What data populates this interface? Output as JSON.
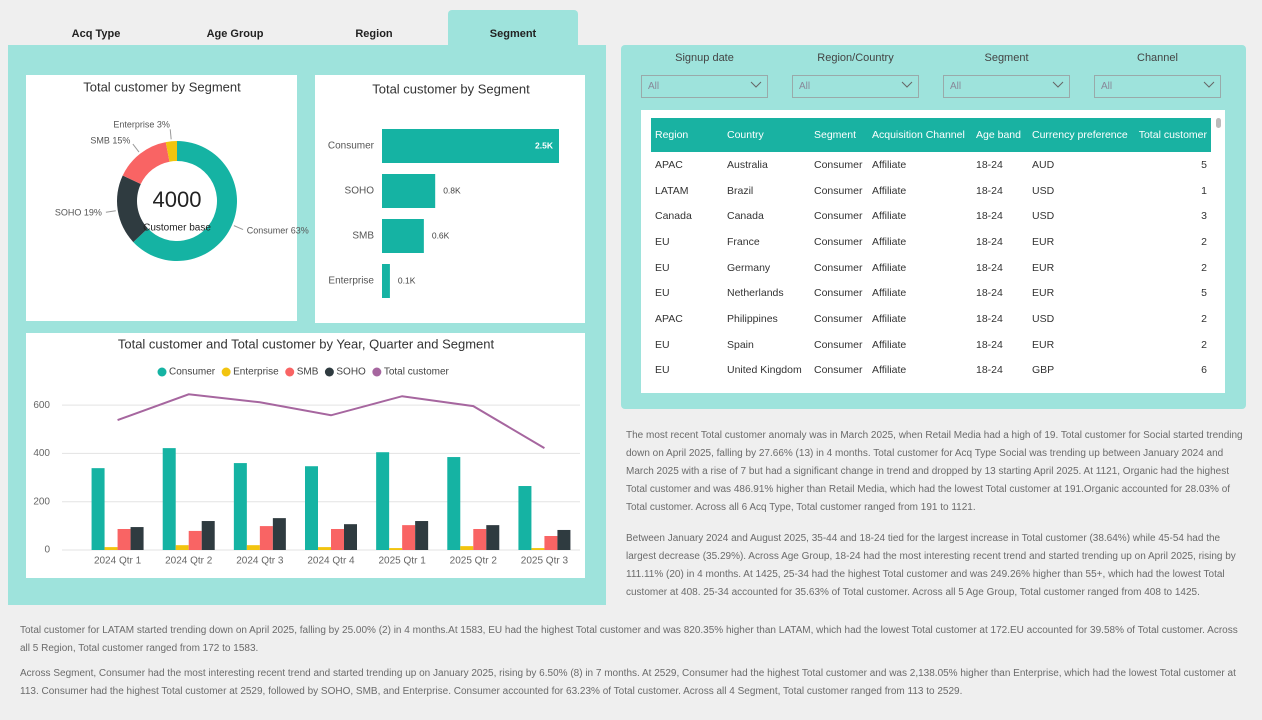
{
  "tabs": {
    "items": [
      "Acq Type",
      "Age Group",
      "Region",
      "Segment"
    ],
    "active": 3
  },
  "chart_data": [
    {
      "type": "donut",
      "title": "Total customer by Segment",
      "center_value": 4000,
      "center_label": "Customer base",
      "categories": [
        "Consumer",
        "SOHO",
        "SMB",
        "Enterprise"
      ],
      "values": [
        63,
        19,
        15,
        3
      ],
      "value_labels": [
        "Consumer 63%",
        "SOHO 19%",
        "SMB 15%",
        "Enterprise 3%"
      ],
      "colors": [
        "#15b3a3",
        "#2f3b40",
        "#f96464",
        "#f2c40f"
      ]
    },
    {
      "type": "hbar",
      "title": "Total customer by Segment",
      "categories": [
        "Consumer",
        "SOHO",
        "SMB",
        "Enterprise"
      ],
      "values": [
        2529,
        760,
        598,
        113
      ],
      "value_labels": [
        "2.5K",
        "0.8K",
        "0.6K",
        "0.1K"
      ],
      "color": "#15b3a3"
    },
    {
      "type": "combo",
      "title": "Total customer and Total customer by Year, Quarter and Segment",
      "categories": [
        "2024 Qtr 1",
        "2024 Qtr 2",
        "2024 Qtr 3",
        "2024 Qtr 4",
        "2025 Qtr 1",
        "2025 Qtr 2",
        "2025 Qtr 3"
      ],
      "series": [
        {
          "name": "Consumer",
          "type": "bar",
          "color": "#15b3a3",
          "values": [
            339,
            422,
            360,
            347,
            405,
            385,
            265
          ]
        },
        {
          "name": "Enterprise",
          "type": "bar",
          "color": "#f2c40f",
          "values": [
            12,
            20,
            20,
            12,
            8,
            16,
            8
          ]
        },
        {
          "name": "SMB",
          "type": "bar",
          "color": "#f96464",
          "values": [
            87,
            79,
            99,
            87,
            103,
            87,
            58
          ]
        },
        {
          "name": "SOHO",
          "type": "bar",
          "color": "#2f3b40",
          "values": [
            95,
            120,
            132,
            107,
            120,
            103,
            83
          ]
        },
        {
          "name": "Total customer",
          "type": "line",
          "color": "#a6669f",
          "values": [
            538,
            645,
            612,
            558,
            637,
            596,
            422
          ]
        }
      ],
      "ylim": [
        0,
        700
      ],
      "yticks": [
        0,
        200,
        400,
        600
      ],
      "grid": true
    }
  ],
  "filters": [
    {
      "label": "Signup date",
      "value": "All"
    },
    {
      "label": "Region/Country",
      "value": "All"
    },
    {
      "label": "Segment",
      "value": "All"
    },
    {
      "label": "Channel",
      "value": "All"
    }
  ],
  "table": {
    "columns": [
      "Region",
      "Country",
      "Segment",
      "Acquisition Channel",
      "Age band",
      "Currency preference",
      "Total customer"
    ],
    "rows": [
      [
        "APAC",
        "Australia",
        "Consumer",
        "Affiliate",
        "18-24",
        "AUD",
        5
      ],
      [
        "LATAM",
        "Brazil",
        "Consumer",
        "Affiliate",
        "18-24",
        "USD",
        1
      ],
      [
        "Canada",
        "Canada",
        "Consumer",
        "Affiliate",
        "18-24",
        "USD",
        3
      ],
      [
        "EU",
        "France",
        "Consumer",
        "Affiliate",
        "18-24",
        "EUR",
        2
      ],
      [
        "EU",
        "Germany",
        "Consumer",
        "Affiliate",
        "18-24",
        "EUR",
        2
      ],
      [
        "EU",
        "Netherlands",
        "Consumer",
        "Affiliate",
        "18-24",
        "EUR",
        5
      ],
      [
        "APAC",
        "Philippines",
        "Consumer",
        "Affiliate",
        "18-24",
        "USD",
        2
      ],
      [
        "EU",
        "Spain",
        "Consumer",
        "Affiliate",
        "18-24",
        "EUR",
        2
      ],
      [
        "EU",
        "United Kingdom",
        "Consumer",
        "Affiliate",
        "18-24",
        "GBP",
        6
      ]
    ]
  },
  "insights": [
    "The most recent Total customer anomaly was in March 2025, when Retail Media had a high of 19. Total customer for Social started trending down on April 2025, falling by 27.66% (13) in 4 months. Total customer for Acq Type Social was trending up between January 2024 and March 2025 with a rise of 7 but had a significant change in trend and dropped by 13 starting April 2025. At 1121, Organic had the highest Total customer and was 486.91% higher than Retail Media, which had the lowest Total customer at 191.Organic accounted for 28.03% of Total customer. Across all 6 Acq Type, Total customer ranged from 191 to 1121.",
    "Between January 2024 and August 2025, 35-44 and 18-24 tied for the largest increase in Total customer (38.64%) while 45-54 had the largest decrease (35.29%). Across Age Group, 18-24 had the most interesting recent trend and started trending up on April 2025, rising by 111.11% (20) in 4 months. At 1425, 25-34 had the highest Total customer and was 249.26% higher than 55+, which had the lowest Total customer at 408. 25-34 accounted for 35.63% of Total customer. Across all 5 Age Group, Total customer ranged from 408 to 1425.",
    "Total customer for LATAM started trending down on April 2025, falling by 25.00% (2) in 4 months.At 1583, EU had the highest Total customer and was 820.35% higher than LATAM, which had the lowest Total customer at 172.EU accounted for 39.58% of Total customer. Across all 5 Region, Total customer ranged from 172 to 1583.",
    "Across Segment, Consumer had the most interesting recent trend and started trending up on January 2025, rising by 6.50% (8) in 7 months. At 2529, Consumer had the highest Total customer and was 2,138.05% higher than Enterprise, which had the lowest Total customer at 113. Consumer had the highest Total customer at 2529, followed by SOHO, SMB, and Enterprise. Consumer accounted for 63.23% of Total customer. Across all 4 Segment, Total customer ranged from 113 to 2529."
  ]
}
